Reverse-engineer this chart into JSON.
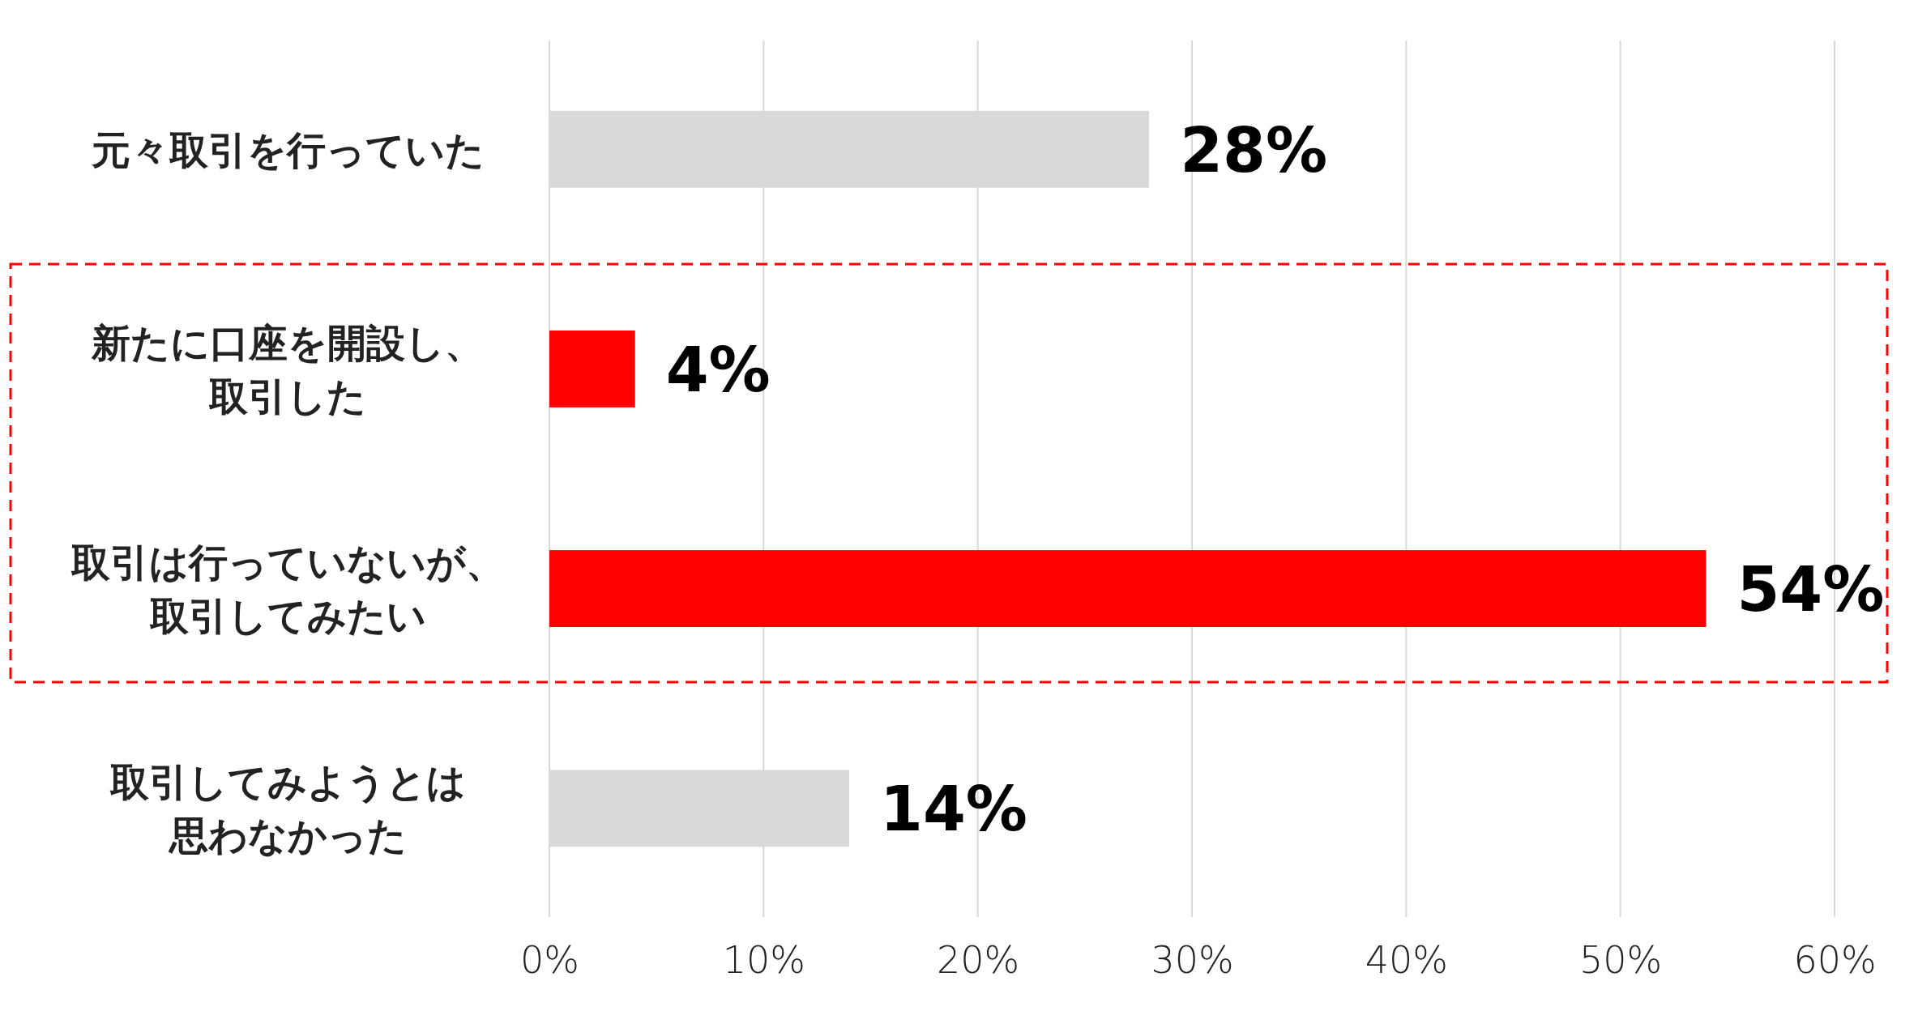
{
  "chart_data": {
    "type": "bar",
    "orientation": "horizontal",
    "categories": [
      "元々取引を行っていた",
      "新たに口座を開設し、取引した",
      "取引は行っていないが、取引してみたい",
      "取引してみようとは思わなかった"
    ],
    "values": [
      28,
      4,
      54,
      14
    ],
    "colors": [
      "#d9d9d9",
      "#ff0000",
      "#ff0000",
      "#d9d9d9"
    ],
    "value_labels": [
      "28%",
      "4%",
      "54%",
      "14%"
    ],
    "xlim": [
      0,
      60
    ],
    "xticks": [
      {
        "value": 0,
        "label": "0%"
      },
      {
        "value": 10,
        "label": "10%"
      },
      {
        "value": 20,
        "label": "20%"
      },
      {
        "value": 30,
        "label": "30%"
      },
      {
        "value": 40,
        "label": "40%"
      },
      {
        "value": 50,
        "label": "50%"
      },
      {
        "value": 60,
        "label": "60%"
      }
    ],
    "grid": "x"
  }
}
